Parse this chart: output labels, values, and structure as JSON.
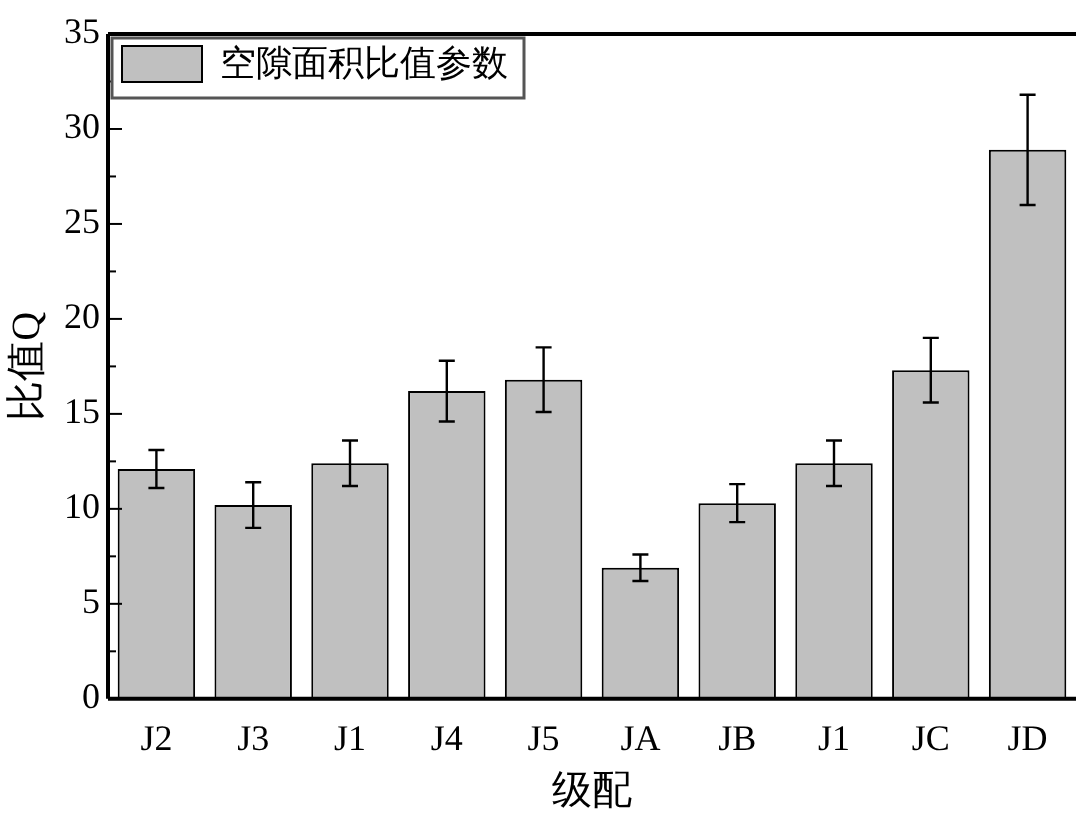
{
  "chart_data": {
    "type": "bar",
    "xlabel": "级配",
    "ylabel": "比值Q",
    "categories": [
      "J2",
      "J3",
      "J1",
      "J4",
      "J5",
      "JA",
      "JB",
      "J1",
      "JC",
      "JD"
    ],
    "series": [
      {
        "name": "空隙面积比值参数",
        "color": "#c0c0c0",
        "values": [
          12.1,
          10.2,
          12.4,
          16.2,
          16.8,
          6.9,
          10.3,
          12.4,
          17.3,
          28.9
        ],
        "errors": [
          1.0,
          1.2,
          1.2,
          1.6,
          1.7,
          0.7,
          1.0,
          1.2,
          1.7,
          2.9
        ]
      }
    ],
    "ylim": [
      0,
      35
    ],
    "yticks": [
      0,
      {
        "value": 2.5,
        "label": null
      },
      5,
      {
        "value": 7.5,
        "label": null
      },
      10,
      {
        "value": 12.5,
        "label": null
      },
      15,
      {
        "value": 17.5,
        "label": null
      },
      20,
      {
        "value": 22.5,
        "label": null
      },
      25,
      {
        "value": 27.5,
        "label": null
      },
      30,
      {
        "value": 32.5,
        "label": null
      },
      35
    ],
    "grid": false,
    "legend": "top left"
  }
}
